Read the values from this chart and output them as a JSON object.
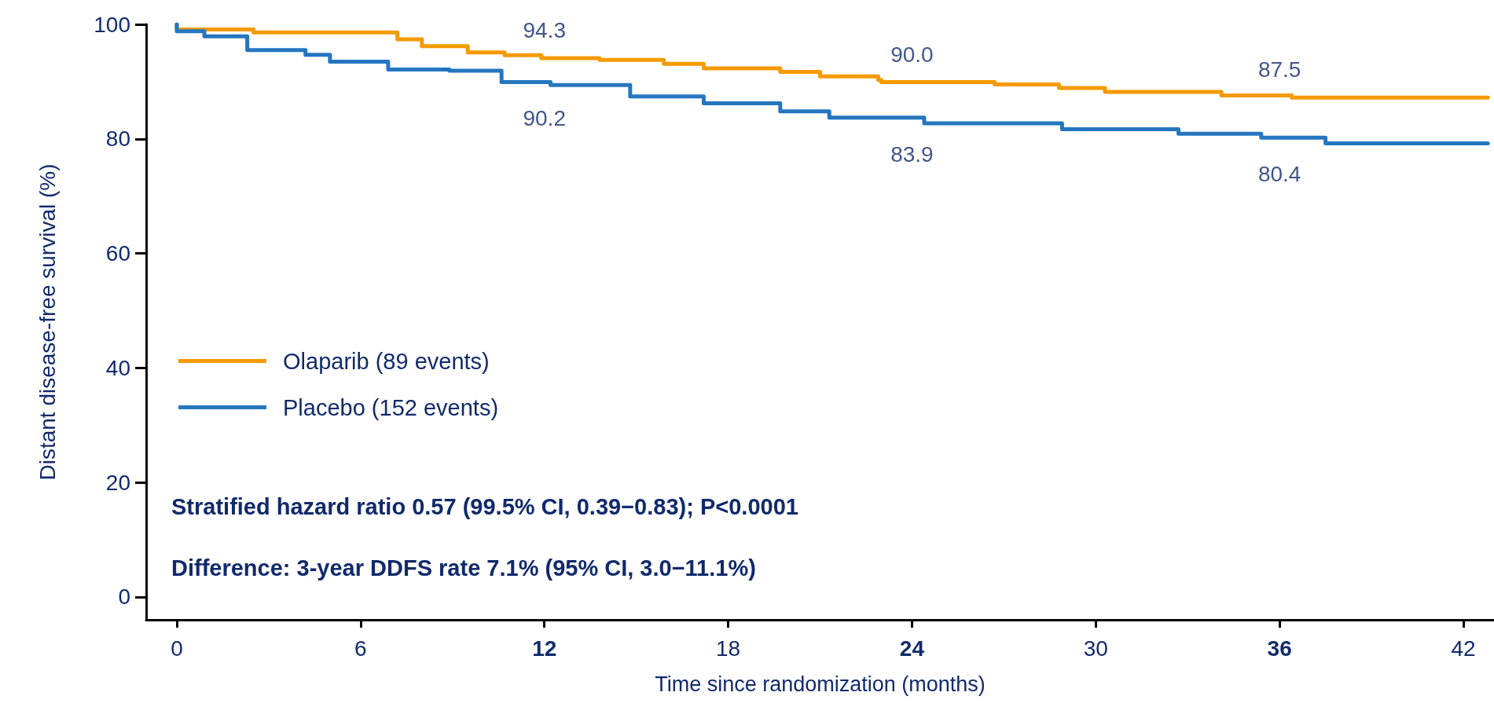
{
  "chart_data": {
    "type": "step",
    "xlabel": "Time since randomization (months)",
    "ylabel": "Distant disease-free survival (%)",
    "xlim": [
      -1,
      43
    ],
    "ylim": [
      -4,
      100
    ],
    "xticks": [
      0,
      6,
      12,
      18,
      24,
      30,
      36,
      42
    ],
    "yticks": [
      0,
      20,
      40,
      60,
      80,
      100
    ],
    "grid": false,
    "legend": "left",
    "marker": "none",
    "line_style": "solid",
    "series": [
      {
        "name": "Olaparib (89 events)",
        "color": "#f59a00",
        "x": [
          0,
          2.5,
          4.8,
          7.2,
          8,
          9.5,
          10.7,
          11.9,
          13.8,
          15.9,
          17.2,
          19.7,
          21,
          22.9,
          23,
          26.7,
          28.8,
          30.3,
          34.1,
          36.4,
          40.7,
          42.8
        ],
        "values": [
          100,
          99.1,
          98.6,
          98.6,
          97.4,
          96.2,
          95.1,
          94.6,
          94.1,
          93.8,
          93.1,
          92.3,
          91.7,
          90.9,
          90.3,
          89.9,
          89.5,
          88.9,
          88.2,
          87.6,
          87.2,
          87.2
        ]
      },
      {
        "name": "Placebo (152 events)",
        "color": "#2476c0",
        "x": [
          0,
          0.9,
          2.3,
          4.2,
          5,
          6.9,
          8.9,
          10.6,
          12.2,
          14.8,
          17.2,
          19.7,
          21.3,
          24.4,
          28.9,
          32.7,
          35.4,
          37.5,
          41.7,
          42.8
        ],
        "values": [
          100,
          98.8,
          97.9,
          95.5,
          94.7,
          93.5,
          92.1,
          91.9,
          89.9,
          89.4,
          87.4,
          86.2,
          84.8,
          83.7,
          82.7,
          81.7,
          80.9,
          80.2,
          79.2,
          79.2
        ]
      }
    ],
    "annotations": [
      {
        "text": "94.3",
        "x": 12,
        "y": 94.3
      },
      {
        "text": "90.2",
        "x": 12,
        "y": 90.2
      },
      {
        "text": "90.0",
        "x": 24,
        "y": 90.0
      },
      {
        "text": "83.9",
        "x": 24,
        "y": 83.9
      },
      {
        "text": "87.5",
        "x": 36,
        "y": 87.5
      },
      {
        "text": "80.4",
        "x": 36,
        "y": 80.4
      },
      "Stratified hazard ratio 0.57 (99.5% CI, 0.39−0.83); P<0.0001",
      "Difference: 3-year DDFS rate 7.1% (95% CI, 3.0−11.1%)"
    ]
  }
}
